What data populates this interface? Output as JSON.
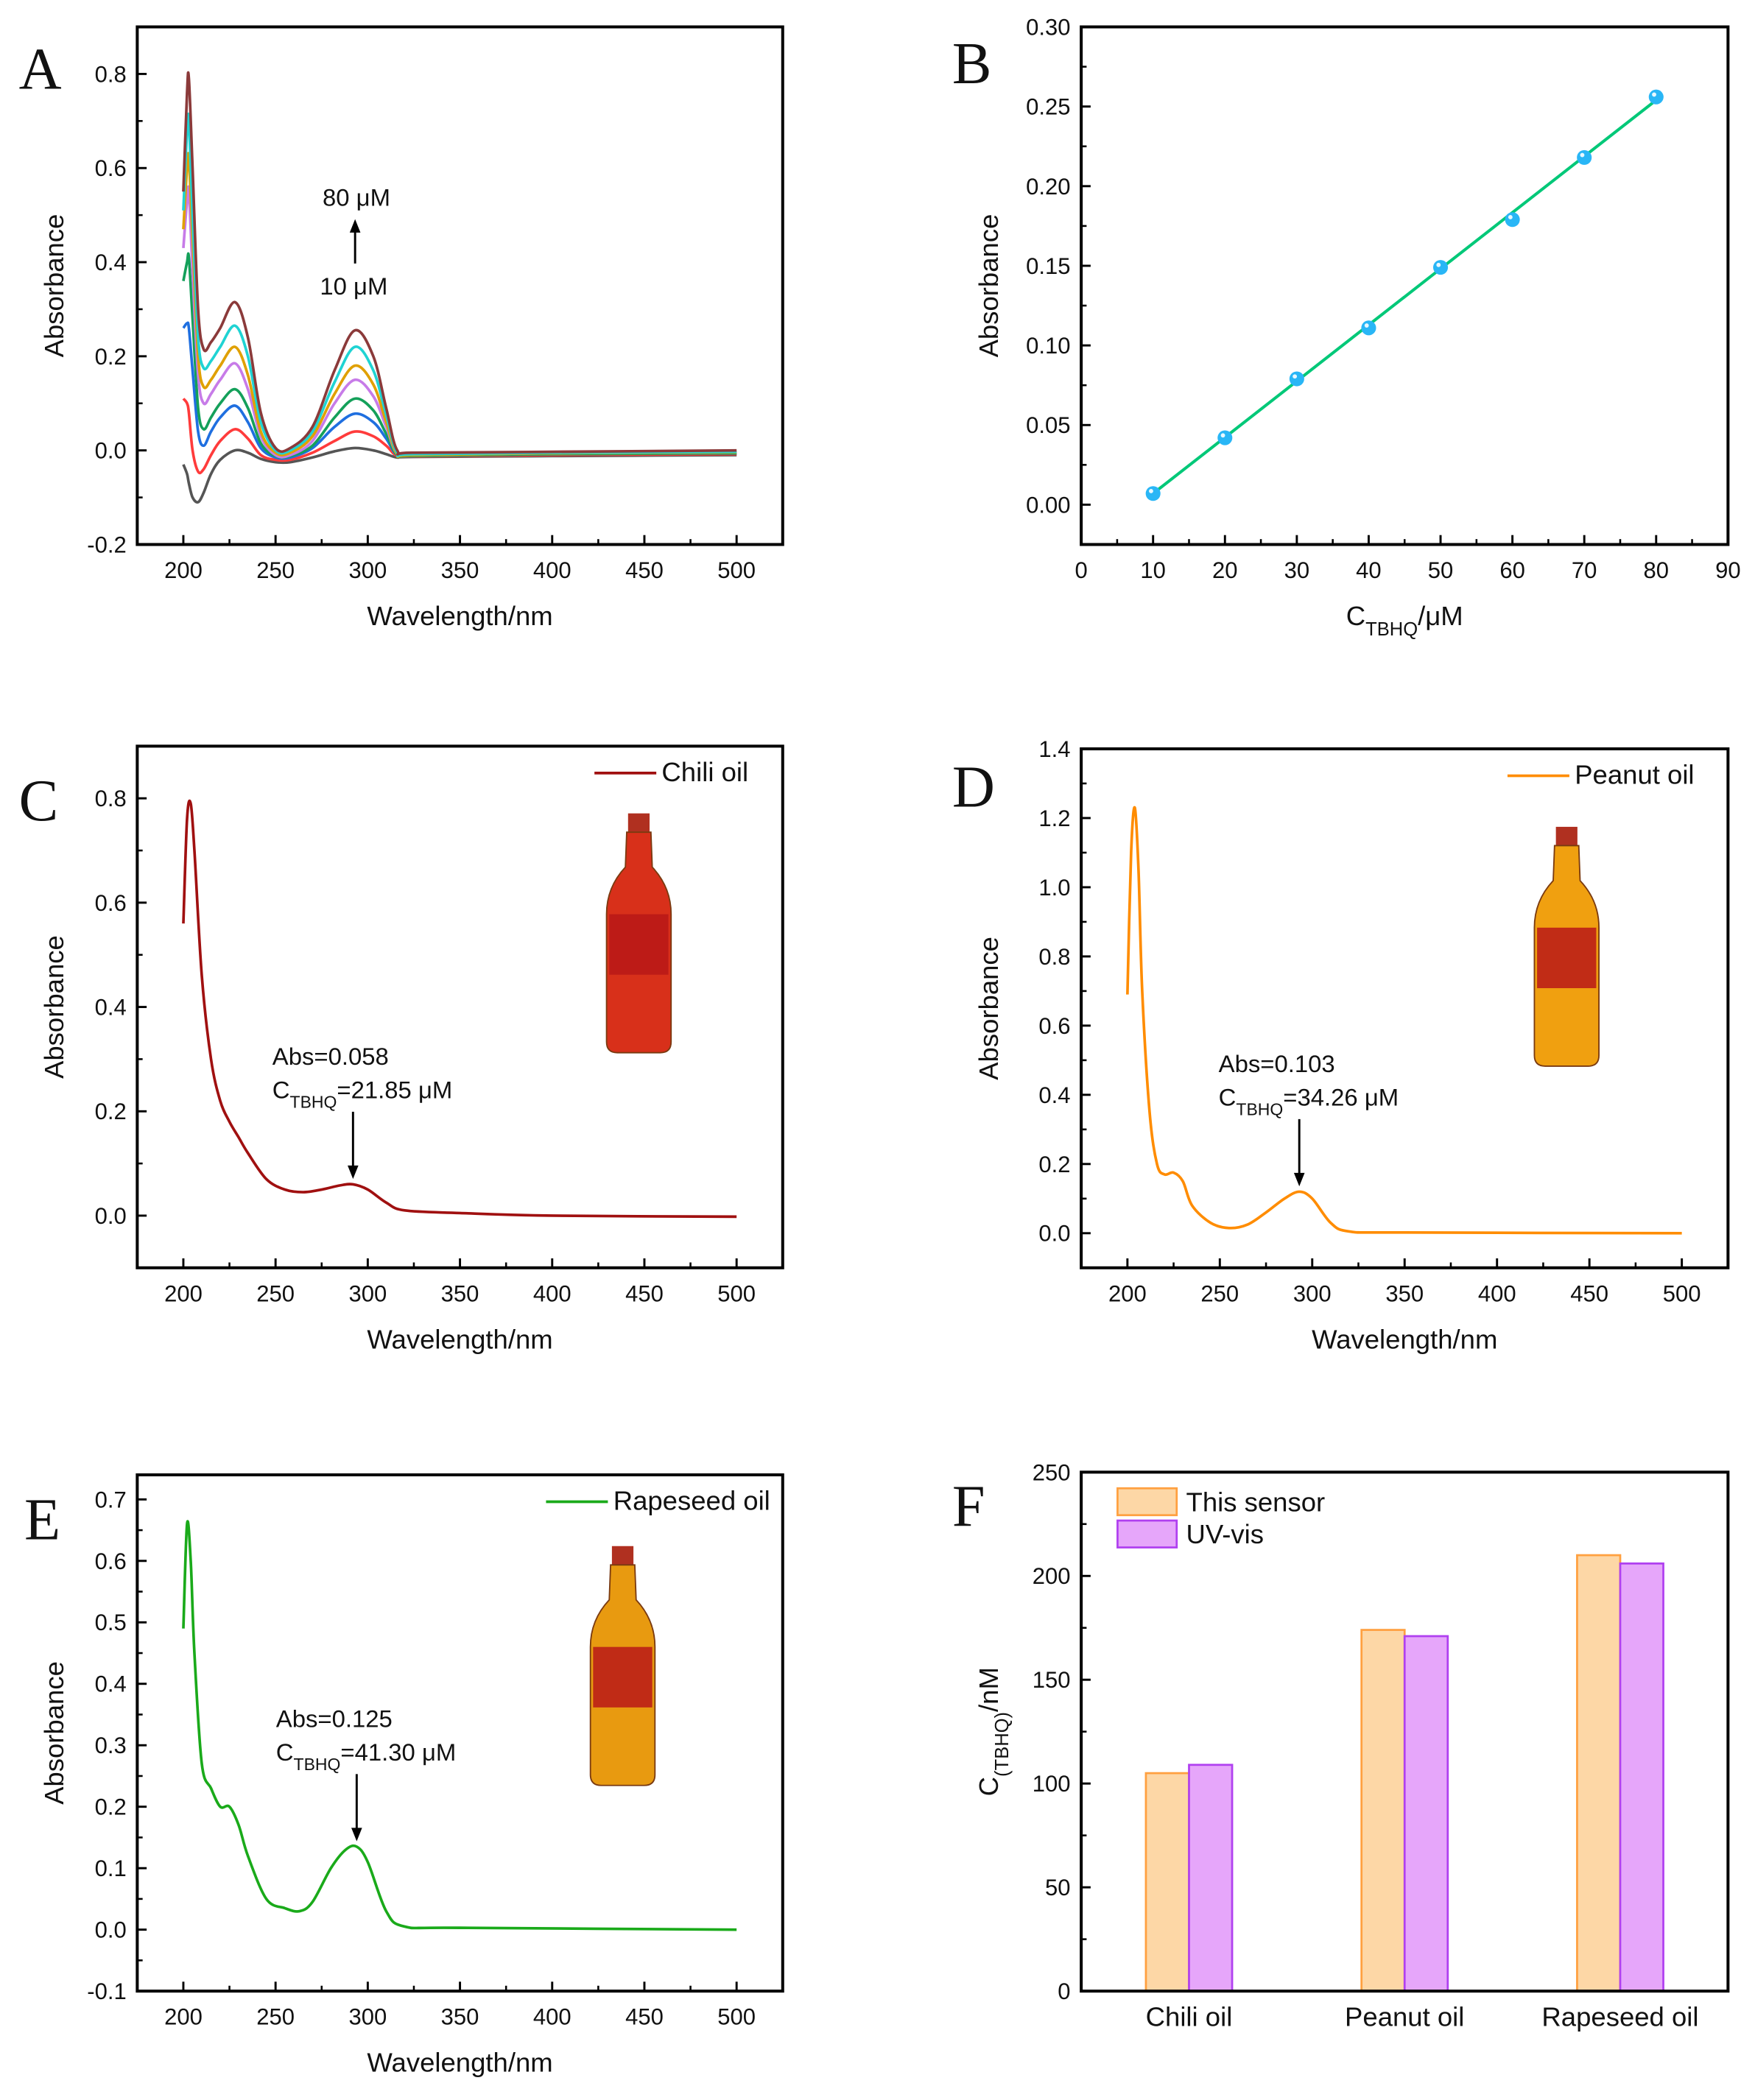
{
  "chart_data": [
    {
      "panel_label": "A",
      "type": "line",
      "xlabel": "Wavelength/nm",
      "ylabel": "Absorbance",
      "xlim": [
        175,
        525
      ],
      "ylim": [
        -0.2,
        0.9
      ],
      "x_ticks": [
        "200",
        "250",
        "300",
        "350",
        "400",
        "450",
        "500"
      ],
      "y_ticks": [
        "-0.2",
        "0.0",
        "0.2",
        "0.4",
        "0.6",
        "0.8"
      ],
      "grid": false,
      "x": [
        200,
        202,
        203,
        205,
        208,
        211,
        215,
        220,
        228,
        235,
        242,
        250,
        258,
        270,
        282,
        293,
        303,
        310,
        316,
        325,
        400,
        500
      ],
      "series": [
        {
          "color": "#555555",
          "values": [
            -0.03,
            -0.05,
            -0.07,
            -0.1,
            -0.11,
            -0.09,
            -0.05,
            -0.02,
            0.0,
            -0.005,
            -0.018,
            -0.025,
            -0.025,
            -0.015,
            -0.002,
            0.005,
            0.0,
            -0.008,
            -0.015,
            -0.014,
            -0.012,
            -0.01
          ]
        },
        {
          "color": "#ff3b3b",
          "values": [
            0.11,
            0.1,
            0.08,
            0.0,
            -0.045,
            -0.04,
            -0.01,
            0.02,
            0.045,
            0.025,
            -0.01,
            -0.02,
            -0.02,
            -0.005,
            0.02,
            0.04,
            0.03,
            0.01,
            -0.012,
            -0.013,
            -0.01,
            -0.008
          ]
        },
        {
          "color": "#1f6fe0",
          "values": [
            0.26,
            0.27,
            0.26,
            0.17,
            0.04,
            0.01,
            0.04,
            0.07,
            0.095,
            0.06,
            0.005,
            -0.015,
            -0.015,
            0.005,
            0.05,
            0.078,
            0.06,
            0.025,
            -0.01,
            -0.012,
            -0.008,
            -0.006
          ]
        },
        {
          "color": "#14a05a",
          "values": [
            0.36,
            0.4,
            0.41,
            0.28,
            0.09,
            0.045,
            0.07,
            0.1,
            0.13,
            0.09,
            0.015,
            -0.012,
            -0.012,
            0.01,
            0.07,
            0.11,
            0.085,
            0.035,
            -0.01,
            -0.012,
            -0.008,
            -0.006
          ]
        },
        {
          "color": "#c77be8",
          "values": [
            0.43,
            0.53,
            0.55,
            0.38,
            0.16,
            0.1,
            0.12,
            0.15,
            0.185,
            0.13,
            0.03,
            -0.01,
            -0.01,
            0.02,
            0.1,
            0.15,
            0.115,
            0.05,
            -0.008,
            -0.01,
            -0.006,
            -0.004
          ]
        },
        {
          "color": "#e0a000",
          "values": [
            0.47,
            0.6,
            0.62,
            0.45,
            0.2,
            0.135,
            0.15,
            0.18,
            0.22,
            0.16,
            0.04,
            -0.005,
            -0.005,
            0.03,
            0.12,
            0.18,
            0.14,
            0.06,
            -0.008,
            -0.01,
            -0.006,
            -0.004
          ]
        },
        {
          "color": "#1fd3d3",
          "values": [
            0.51,
            0.68,
            0.7,
            0.5,
            0.24,
            0.175,
            0.19,
            0.22,
            0.265,
            0.2,
            0.06,
            0.0,
            0.0,
            0.04,
            0.145,
            0.22,
            0.17,
            0.075,
            -0.005,
            -0.008,
            -0.005,
            -0.003
          ]
        },
        {
          "color": "#8b3a3a",
          "values": [
            0.55,
            0.76,
            0.79,
            0.6,
            0.3,
            0.215,
            0.23,
            0.26,
            0.315,
            0.24,
            0.08,
            0.005,
            0.005,
            0.05,
            0.17,
            0.255,
            0.2,
            0.09,
            0.0,
            -0.005,
            -0.003,
            0.0
          ]
        }
      ],
      "annotations": {
        "top": "80 μM",
        "bottom": "10 μM"
      }
    },
    {
      "panel_label": "B",
      "type": "scatter",
      "xlabel_parts": [
        "C",
        "TBHQ",
        "/μM"
      ],
      "ylabel": "Absorbance",
      "xlim": [
        0,
        90
      ],
      "ylim": [
        -0.025,
        0.3
      ],
      "x_ticks": [
        "0",
        "10",
        "20",
        "30",
        "40",
        "50",
        "60",
        "70",
        "80",
        "90"
      ],
      "y_ticks": [
        "0.00",
        "0.05",
        "0.10",
        "0.15",
        "0.20",
        "0.25",
        "0.30"
      ],
      "grid": false,
      "x": [
        10,
        20,
        30,
        40,
        50,
        60,
        70,
        80
      ],
      "values": [
        0.007,
        0.042,
        0.079,
        0.111,
        0.149,
        0.179,
        0.218,
        0.256
      ],
      "fit_line": {
        "x": [
          10,
          80
        ],
        "y": [
          0.007,
          0.254
        ],
        "color": "#00c878"
      },
      "point_color": "#29b6f6"
    },
    {
      "panel_label": "C",
      "type": "line",
      "xlabel": "Wavelength/nm",
      "ylabel": "Absorbance",
      "xlim": [
        175,
        525
      ],
      "ylim": [
        -0.1,
        0.9
      ],
      "x_ticks": [
        "200",
        "250",
        "300",
        "350",
        "400",
        "450",
        "500"
      ],
      "y_ticks": [
        "0.0",
        "0.2",
        "0.4",
        "0.6",
        "0.8"
      ],
      "grid": false,
      "legend": "top-right",
      "x": [
        200,
        202,
        204,
        206,
        210,
        215,
        220,
        225,
        230,
        235,
        245,
        255,
        265,
        275,
        285,
        292,
        300,
        310,
        320,
        350,
        400,
        500
      ],
      "series": [
        {
          "name": "Chili oil",
          "color": "#a01010",
          "values": [
            0.56,
            0.76,
            0.79,
            0.7,
            0.46,
            0.3,
            0.22,
            0.18,
            0.15,
            0.12,
            0.07,
            0.05,
            0.045,
            0.05,
            0.058,
            0.06,
            0.05,
            0.025,
            0.01,
            0.005,
            0.0,
            -0.002
          ]
        }
      ],
      "annotation": {
        "abs": "Abs=0.058",
        "c_prefix": "C",
        "c_sub": "TBHQ",
        "c_value": "=21.85 μM",
        "arrow_x": 292,
        "arrow_y": 0.06
      }
    },
    {
      "panel_label": "D",
      "type": "line",
      "xlabel": "Wavelength/nm",
      "ylabel": "Absorbance",
      "xlim": [
        175,
        525
      ],
      "ylim": [
        -0.1,
        1.4
      ],
      "x_ticks": [
        "200",
        "250",
        "300",
        "350",
        "400",
        "450",
        "500"
      ],
      "y_ticks": [
        "0.0",
        "0.2",
        "0.4",
        "0.6",
        "0.8",
        "1.0",
        "1.2",
        "1.4"
      ],
      "grid": false,
      "legend": "top-right",
      "x": [
        200,
        202,
        204,
        206,
        208,
        212,
        216,
        220,
        225,
        230,
        235,
        245,
        255,
        265,
        275,
        285,
        293,
        300,
        310,
        320,
        350,
        500
      ],
      "series": [
        {
          "name": "Peanut oil",
          "color": "#ff8c00",
          "values": [
            0.69,
            1.1,
            1.23,
            1.05,
            0.7,
            0.35,
            0.2,
            0.17,
            0.175,
            0.15,
            0.08,
            0.03,
            0.015,
            0.025,
            0.06,
            0.1,
            0.12,
            0.1,
            0.03,
            0.005,
            0.002,
            0.0
          ]
        }
      ],
      "annotation": {
        "abs": "Abs=0.103",
        "c_prefix": "C",
        "c_sub": "TBHQ",
        "c_value": "=34.26 μM",
        "arrow_x": 293,
        "arrow_y": 0.12
      }
    },
    {
      "panel_label": "E",
      "type": "line",
      "xlabel": "Wavelength/nm",
      "ylabel": "Absorbance",
      "xlim": [
        175,
        525
      ],
      "ylim": [
        -0.1,
        0.74
      ],
      "x_ticks": [
        "200",
        "250",
        "300",
        "350",
        "400",
        "450",
        "500"
      ],
      "y_ticks": [
        "-0.1",
        "0.0",
        "0.1",
        "0.2",
        "0.3",
        "0.4",
        "0.5",
        "0.6",
        "0.7"
      ],
      "grid": false,
      "legend": "top-right",
      "x": [
        200,
        202,
        204,
        206,
        210,
        215,
        220,
        225,
        230,
        235,
        245,
        255,
        263,
        270,
        280,
        288,
        294,
        300,
        310,
        320,
        350,
        500
      ],
      "series": [
        {
          "name": "Rapeseed oil",
          "color": "#1aaa1a",
          "values": [
            0.49,
            0.66,
            0.6,
            0.45,
            0.27,
            0.23,
            0.2,
            0.2,
            0.17,
            0.12,
            0.05,
            0.035,
            0.03,
            0.045,
            0.1,
            0.13,
            0.135,
            0.11,
            0.03,
            0.005,
            0.003,
            0.0
          ]
        }
      ],
      "annotation": {
        "abs": "Abs=0.125",
        "c_prefix": "C",
        "c_sub": "TBHQ",
        "c_value": "=41.30 μM",
        "arrow_x": 294,
        "arrow_y": 0.135
      }
    },
    {
      "panel_label": "F",
      "type": "bar",
      "ylabel_parts": [
        "C",
        "(TBHQ)",
        "/nM"
      ],
      "ylim": [
        0,
        250
      ],
      "y_ticks": [
        "0",
        "50",
        "100",
        "150",
        "200",
        "250"
      ],
      "grid": false,
      "legend": "top-left",
      "categories": [
        "Chili  oil",
        "Peanut oil",
        "Rapeseed oil"
      ],
      "series": [
        {
          "name": "This sensor",
          "fill": "#fdd7a6",
          "stroke": "#ffa040",
          "values": [
            105,
            174,
            210
          ]
        },
        {
          "name": "UV-vis",
          "fill": "#e6a6fa",
          "stroke": "#b040f0",
          "values": [
            109,
            171,
            206
          ]
        }
      ]
    }
  ]
}
